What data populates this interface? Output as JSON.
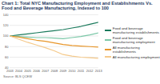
{
  "chart_data": {
    "type": "line",
    "title": "Chart 1: Total NYC Manufacturing Employment and Establishments Vs. Food and Beverage Manufacturing, Indexed to 100",
    "source": "Source: BLS QCEW",
    "x": [
      2003,
      2004,
      2005,
      2006,
      2007,
      2008,
      2009,
      2010,
      2011,
      2012,
      2013
    ],
    "xlim": [
      2003,
      2013
    ],
    "xticks": [
      2003,
      2004,
      2005,
      2006,
      2007,
      2008,
      2009,
      2010,
      2011,
      2012,
      2013
    ],
    "ylim": [
      40,
      140
    ],
    "yticks": [
      40,
      60,
      80,
      100,
      120,
      140
    ],
    "grid": true,
    "legend": "right",
    "series": [
      {
        "name": "Food and beverage manufacturing establishments",
        "color": "#1a7a5c",
        "values": [
          100,
          102,
          104,
          106,
          108,
          110,
          112,
          115,
          118,
          122,
          126
        ]
      },
      {
        "name": "Food and beverage manufacturing employment",
        "color": "#7cc8a8",
        "values": [
          100,
          99,
          98,
          97,
          97,
          96,
          95,
          97,
          99,
          102,
          106
        ]
      },
      {
        "name": "All manufacturing establishments",
        "color": "#e8962a",
        "values": [
          100,
          98,
          95,
          92,
          90,
          87,
          84,
          82,
          81,
          80,
          79
        ]
      },
      {
        "name": "All manufacturing employment",
        "color": "#f5c98a",
        "values": [
          100,
          94,
          88,
          83,
          78,
          72,
          65,
          62,
          60,
          59,
          58
        ]
      }
    ]
  }
}
